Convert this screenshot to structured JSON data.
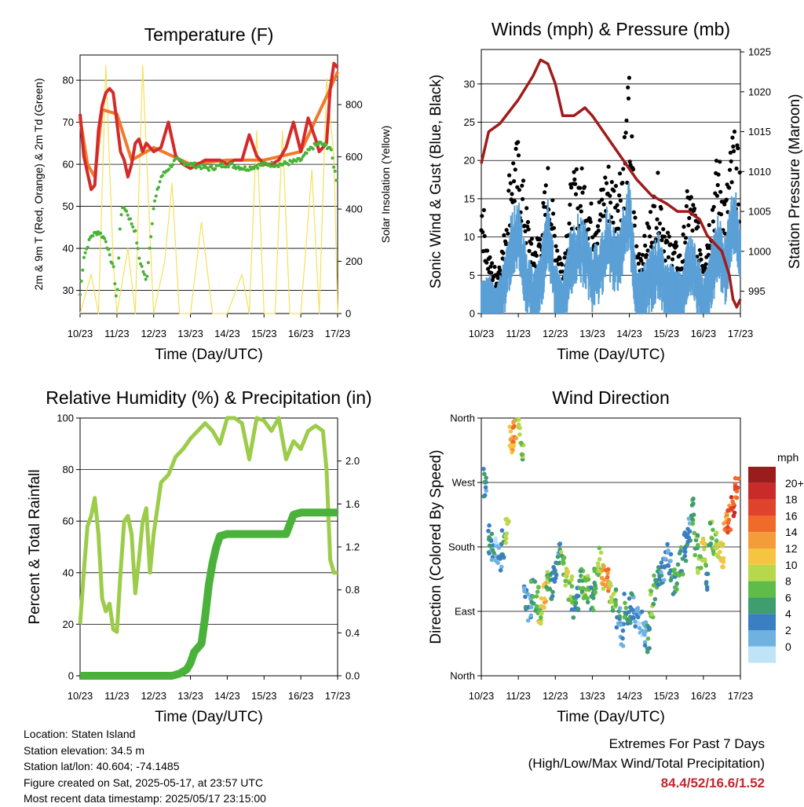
{
  "x_tick_labels": [
    "10/23",
    "11/23",
    "12/23",
    "13/23",
    "14/23",
    "15/23",
    "16/23",
    "17/23"
  ],
  "info": {
    "location": "Location: Staten Island",
    "elevation": "Station elevation: 34.5 m",
    "latlon": "Station lat/lon: 40.604; -74.1485",
    "created": "Figure created on Sat, 2025-05-17, at 23:57 UTC",
    "recent": "Most recent data timestamp: 2025/05/17 23:15:00"
  },
  "extremes": {
    "title": "Extremes For Past 7 Days",
    "subtitle": "(High/Low/Max Wind/Total Precipitation)",
    "values": "84.4/52/16.6/1.52"
  },
  "colorbar": {
    "unit": "mph",
    "labels": [
      "20+",
      "18",
      "16",
      "14",
      "12",
      "10",
      "8",
      "6",
      "4",
      "2",
      "0"
    ],
    "colors": [
      "#9b1c1c",
      "#c92a2a",
      "#e0432b",
      "#f06a2a",
      "#f59c3a",
      "#f5c542",
      "#b7d84b",
      "#5fbb4a",
      "#3f9e6e",
      "#3a7fc1",
      "#6fb2e0",
      "#bfe4f7"
    ]
  },
  "chart_data": [
    {
      "type": "line",
      "title": "Temperature (F)",
      "xlabel": "Time (Day/UTC)",
      "ylabel": "2m & 9m T (Red, Orange) & 2m Td (Green)",
      "ylabel_right": "Solar Insolation (Yellow)",
      "xlim": [
        0,
        7
      ],
      "ylim": [
        24.5,
        86
      ],
      "y_ticks": [
        30,
        40,
        50,
        60,
        70,
        80
      ],
      "ylim_right": [
        0,
        990
      ],
      "y_ticks_right": [
        0,
        200,
        400,
        600,
        800
      ],
      "grid": true,
      "colors": {
        "t2m": "#d42a2a",
        "t9m": "#f07a2a",
        "td": "#49b236",
        "solar": "#f5e05a"
      },
      "series": [
        {
          "name": "2m T",
          "x": [
            0,
            0.1,
            0.2,
            0.3,
            0.4,
            0.5,
            0.6,
            0.7,
            0.8,
            0.9,
            1.0,
            1.1,
            1.2,
            1.3,
            1.4,
            1.5,
            1.6,
            1.7,
            1.8,
            1.9,
            2.0,
            2.2,
            2.4,
            2.6,
            2.8,
            3.0,
            3.2,
            3.4,
            3.6,
            3.8,
            4.0,
            4.2,
            4.4,
            4.6,
            4.8,
            5.0,
            5.2,
            5.4,
            5.6,
            5.8,
            6.0,
            6.2,
            6.4,
            6.5,
            6.6,
            6.7,
            6.8,
            6.9,
            7.0
          ],
          "y": [
            72,
            62,
            58,
            54,
            55,
            68,
            74,
            77,
            78,
            77,
            70,
            63,
            61,
            57,
            60,
            65,
            66,
            63,
            65,
            64,
            63,
            64,
            70,
            62,
            60,
            59,
            60,
            61,
            61,
            61,
            60,
            61,
            61,
            67,
            62,
            60,
            60,
            61,
            64,
            70,
            63,
            71,
            66,
            63,
            64,
            65,
            78,
            84,
            83
          ]
        },
        {
          "name": "9m T",
          "x": [
            0,
            0.2,
            0.4,
            0.6,
            1.0,
            1.4,
            2.0,
            3.0,
            4.0,
            5.0,
            6.0,
            6.8,
            7.0
          ],
          "y": [
            71,
            60,
            57,
            73,
            72,
            61,
            64,
            60,
            61,
            61,
            63,
            78,
            82
          ]
        },
        {
          "name": "2m Td",
          "x": [
            0,
            0.1,
            0.3,
            0.5,
            0.7,
            0.8,
            0.9,
            1.0,
            1.1,
            1.2,
            1.4,
            1.5,
            1.6,
            1.8,
            2.0,
            2.2,
            2.4,
            2.6,
            3.0,
            3.5,
            4.0,
            4.5,
            5.0,
            5.5,
            6.0,
            6.3,
            6.5,
            6.8,
            7.0
          ],
          "y": [
            29,
            38,
            43,
            44,
            42,
            38,
            36,
            27,
            48,
            50,
            46,
            44,
            38,
            32,
            50,
            57,
            59,
            61,
            60,
            59,
            60,
            59,
            60,
            60,
            61,
            64,
            65,
            64,
            55
          ]
        },
        {
          "name": "Solar",
          "x": [
            0,
            0.3,
            0.5,
            0.7,
            0.9,
            1.0,
            1.3,
            1.5,
            1.7,
            1.9,
            2.0,
            2.3,
            2.5,
            2.7,
            3.0,
            3.3,
            3.6,
            4.0,
            4.4,
            4.6,
            4.8,
            5.0,
            5.3,
            5.5,
            5.7,
            6.0,
            6.3,
            6.5,
            6.7,
            6.9,
            7.0
          ],
          "y": [
            0,
            150,
            0,
            950,
            200,
            0,
            250,
            0,
            950,
            300,
            0,
            200,
            500,
            0,
            0,
            350,
            0,
            0,
            150,
            0,
            700,
            0,
            0,
            700,
            0,
            0,
            550,
            0,
            900,
            600,
            0
          ]
        }
      ]
    },
    {
      "type": "scatter",
      "title": "Winds (mph) & Pressure (mb)",
      "xlabel": "Time (Day/UTC)",
      "ylabel": "Sonic Wind & Gust (Blue, Black)",
      "ylabel_right": "Station Pressure (Maroon)",
      "xlim": [
        0,
        7
      ],
      "ylim": [
        0,
        34.5
      ],
      "y_ticks": [
        0,
        5,
        10,
        15,
        20,
        25,
        30
      ],
      "ylim_right": [
        992.2,
        1025.3
      ],
      "y_ticks_right": [
        995,
        1000,
        1005,
        1010,
        1015,
        1020,
        1025
      ],
      "colors": {
        "wind": "#5aa0d6",
        "gust": "#000000",
        "pressure": "#a01c1c"
      },
      "series": [
        {
          "name": "Wind envelope",
          "x": [
            0,
            0.2,
            0.4,
            0.6,
            0.8,
            1.0,
            1.2,
            1.4,
            1.6,
            1.8,
            2.0,
            2.2,
            2.4,
            2.6,
            2.8,
            3.0,
            3.2,
            3.4,
            3.6,
            3.8,
            4.0,
            4.2,
            4.4,
            4.6,
            4.8,
            5.0,
            5.2,
            5.4,
            5.6,
            5.8,
            6.0,
            6.2,
            6.4,
            6.6,
            6.8,
            7.0
          ],
          "y": [
            4,
            5,
            3,
            6,
            12,
            14,
            8,
            5,
            7,
            14,
            6,
            4,
            10,
            12,
            11,
            8,
            9,
            13,
            10,
            12,
            16,
            5,
            6,
            8,
            10,
            6,
            6,
            5,
            10,
            8,
            4,
            8,
            12,
            9,
            16,
            12
          ]
        },
        {
          "name": "Gust envelope",
          "x": [
            0,
            0.2,
            0.4,
            0.6,
            0.8,
            1.0,
            1.2,
            1.4,
            1.6,
            1.8,
            2.0,
            2.2,
            2.4,
            2.6,
            2.8,
            3.0,
            3.2,
            3.4,
            3.6,
            3.8,
            4.0,
            4.2,
            4.4,
            4.6,
            4.8,
            5.0,
            5.2,
            5.4,
            5.6,
            5.8,
            6.0,
            6.2,
            6.4,
            6.6,
            6.8,
            7.0
          ],
          "y": [
            17,
            8,
            6,
            10,
            22,
            23,
            15,
            9,
            12,
            20,
            12,
            7,
            17,
            20,
            19,
            14,
            16,
            21,
            18,
            22,
            32,
            9,
            10,
            15,
            19,
            11,
            10,
            8,
            18,
            14,
            8,
            15,
            22,
            16,
            25,
            20
          ]
        },
        {
          "name": "Pressure",
          "x": [
            0,
            0.2,
            0.5,
            1.0,
            1.4,
            1.6,
            1.8,
            2.0,
            2.2,
            2.5,
            2.8,
            3.0,
            3.3,
            3.6,
            3.9,
            4.2,
            4.6,
            5.0,
            5.3,
            5.6,
            5.9,
            6.1,
            6.3,
            6.5,
            6.7,
            6.8,
            6.9,
            7.0
          ],
          "y": [
            1011,
            1015,
            1016,
            1019,
            1022,
            1024,
            1023.5,
            1021,
            1017,
            1017,
            1018,
            1017,
            1015,
            1013,
            1011,
            1009,
            1007,
            1006,
            1005,
            1005,
            1004,
            1002,
            1001,
            1000,
            997,
            994,
            993,
            994
          ]
        }
      ]
    },
    {
      "type": "line",
      "title": "Relative Humidity (%) & Precipitation (in)",
      "xlabel": "Time (Day/UTC)",
      "ylabel": "Percent & Total Rainfall",
      "xlim": [
        0,
        7
      ],
      "ylim": [
        0,
        100
      ],
      "y_ticks": [
        0,
        20,
        40,
        60,
        80,
        100
      ],
      "ylim_right": [
        0,
        2.4
      ],
      "y_ticks_right": [
        0.0,
        0.4,
        0.8,
        1.2,
        1.6,
        2.0
      ],
      "y_ticks_right_labels": [
        "0.0",
        "0.4",
        "0.8",
        "1.2",
        "1.6",
        "2.0"
      ],
      "colors": {
        "rh": "#9ccc4a",
        "precip": "#4ab23a"
      },
      "series": [
        {
          "name": "RH",
          "x": [
            0,
            0.1,
            0.2,
            0.3,
            0.4,
            0.5,
            0.6,
            0.7,
            0.8,
            0.9,
            1.0,
            1.1,
            1.2,
            1.3,
            1.4,
            1.5,
            1.6,
            1.7,
            1.8,
            1.9,
            2.0,
            2.2,
            2.4,
            2.6,
            2.8,
            3.0,
            3.2,
            3.4,
            3.6,
            3.8,
            4.0,
            4.2,
            4.4,
            4.6,
            4.8,
            5.0,
            5.2,
            5.4,
            5.6,
            5.8,
            6.0,
            6.2,
            6.4,
            6.5,
            6.6,
            6.7,
            6.8,
            6.9,
            7.0
          ],
          "y": [
            20,
            40,
            58,
            62,
            69,
            55,
            30,
            25,
            28,
            18,
            17,
            40,
            60,
            62,
            55,
            32,
            45,
            60,
            65,
            40,
            55,
            75,
            78,
            85,
            88,
            92,
            95,
            98,
            95,
            90,
            100,
            100,
            98,
            84,
            100,
            99,
            95,
            100,
            84,
            91,
            88,
            95,
            97,
            96,
            95,
            80,
            45,
            40,
            40
          ]
        },
        {
          "name": "Precipitation",
          "x": [
            0,
            1.5,
            2.0,
            2.5,
            2.7,
            2.9,
            3.0,
            3.1,
            3.3,
            3.4,
            3.5,
            3.6,
            3.7,
            3.8,
            4.0,
            4.5,
            5.0,
            5.6,
            5.8,
            6.0,
            6.5,
            7.0
          ],
          "y": [
            0,
            0,
            0,
            0,
            0.02,
            0.06,
            0.12,
            0.22,
            0.3,
            0.55,
            0.85,
            1.05,
            1.2,
            1.3,
            1.32,
            1.32,
            1.32,
            1.32,
            1.5,
            1.52,
            1.52,
            1.52
          ]
        }
      ]
    },
    {
      "type": "scatter",
      "title": "Wind Direction",
      "xlabel": "Time (Day/UTC)",
      "ylabel": "Direction (Colored By Speed)",
      "xlim": [
        0,
        7
      ],
      "ylim": [
        0,
        360
      ],
      "y_ticks": [
        0,
        90,
        180,
        270,
        360
      ],
      "y_tick_labels": [
        "North",
        "East",
        "South",
        "West",
        "North"
      ],
      "series": [
        {
          "name": "Direction",
          "x": [
            0.1,
            0.2,
            0.3,
            0.4,
            0.5,
            0.6,
            0.7,
            0.8,
            0.9,
            1.0,
            1.1,
            1.2,
            1.3,
            1.4,
            1.5,
            1.6,
            1.7,
            1.8,
            1.9,
            2.0,
            2.1,
            2.2,
            2.3,
            2.4,
            2.5,
            2.6,
            2.7,
            2.8,
            2.9,
            3.0,
            3.1,
            3.2,
            3.3,
            3.4,
            3.5,
            3.6,
            3.7,
            3.8,
            3.9,
            4.0,
            4.1,
            4.2,
            4.3,
            4.4,
            4.5,
            4.6,
            4.7,
            4.8,
            4.9,
            5.0,
            5.1,
            5.2,
            5.3,
            5.4,
            5.5,
            5.6,
            5.7,
            5.8,
            5.9,
            6.0,
            6.1,
            6.2,
            6.3,
            6.4,
            6.5,
            6.6,
            6.7,
            6.8,
            6.9
          ],
          "y": [
            270,
            190,
            180,
            175,
            165,
            185,
            200,
            330,
            340,
            350,
            320,
            110,
            95,
            120,
            105,
            90,
            115,
            130,
            125,
            150,
            170,
            160,
            140,
            120,
            100,
            110,
            130,
            125,
            120,
            110,
            130,
            160,
            140,
            130,
            120,
            110,
            80,
            60,
            95,
            90,
            100,
            80,
            70,
            60,
            50,
            100,
            120,
            140,
            150,
            170,
            150,
            130,
            140,
            160,
            180,
            200,
            230,
            180,
            160,
            175,
            140,
            200,
            190,
            180,
            170,
            210,
            220,
            240,
            260
          ],
          "speeds": [
            4,
            6,
            4,
            2,
            3,
            5,
            10,
            12,
            14,
            10,
            8,
            4,
            3,
            6,
            8,
            10,
            12,
            8,
            6,
            5,
            4,
            8,
            10,
            8,
            6,
            4,
            7,
            9,
            8,
            6,
            7,
            9,
            12,
            14,
            10,
            8,
            4,
            3,
            6,
            5,
            4,
            3,
            2,
            3,
            6,
            8,
            7,
            5,
            4,
            3,
            4,
            6,
            8,
            6,
            5,
            4,
            6,
            8,
            9,
            10,
            6,
            8,
            9,
            10,
            12,
            14,
            16,
            18,
            16
          ]
        }
      ]
    }
  ]
}
